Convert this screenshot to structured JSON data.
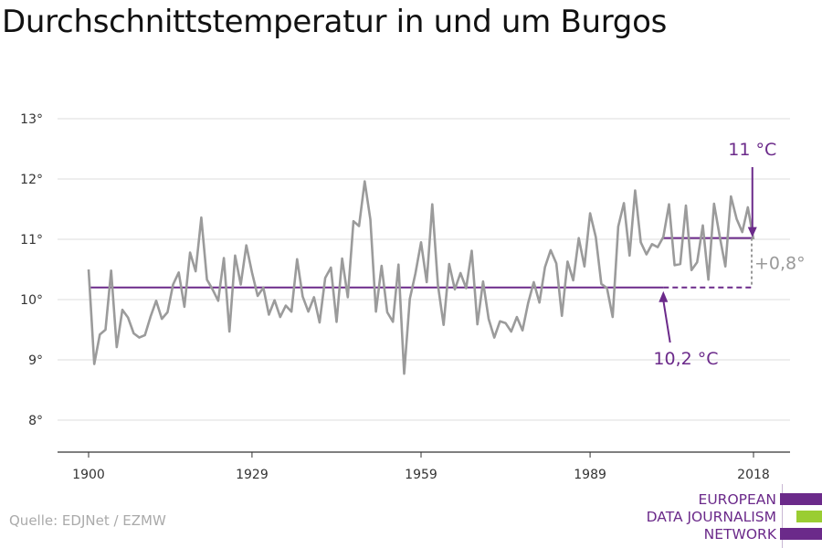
{
  "title": "Durchschnittstemperatur in und um Burgos",
  "source": "Quelle: EDJNet / EZMW",
  "logo": {
    "lines": [
      "EUROPEAN",
      "DATA JOURNALISM",
      "NETWORK"
    ],
    "colors": [
      "#6b2a8a",
      "#9acd32",
      "#6b2a8a"
    ]
  },
  "colors": {
    "series": "#9b9b9b",
    "accent": "#6b2a8a",
    "grid": "#dddddd",
    "axis": "#333333",
    "diff_label": "#999999"
  },
  "chart_data": {
    "type": "line",
    "title": "Durchschnittstemperatur in und um Burgos",
    "xlabel": "",
    "ylabel": "",
    "xlim": [
      1900,
      2018
    ],
    "ylim": [
      7.5,
      13.5
    ],
    "x_ticks": [
      1900,
      1929,
      1959,
      1989,
      2018
    ],
    "x_tick_labels": [
      "1900",
      "1929",
      "1959",
      "1989",
      "2018"
    ],
    "y_ticks": [
      8,
      9,
      10,
      11,
      12,
      13
    ],
    "y_tick_labels": [
      "8°",
      "9°",
      "10°",
      "11°",
      "12°",
      "13°"
    ],
    "grid": true,
    "series": [
      {
        "x": [
          1900,
          1901,
          1902,
          1903,
          1904,
          1905,
          1906,
          1907,
          1908,
          1909,
          1910,
          1911,
          1912,
          1913,
          1914,
          1915,
          1916,
          1917,
          1918,
          1919,
          1920,
          1921,
          1922,
          1923,
          1924,
          1925,
          1926,
          1927,
          1928,
          1929,
          1930,
          1931,
          1932,
          1933,
          1934,
          1935,
          1936,
          1937,
          1938,
          1939,
          1940,
          1941,
          1942,
          1943,
          1944,
          1945,
          1946,
          1947,
          1948,
          1949,
          1950,
          1951,
          1952,
          1953,
          1954,
          1955,
          1956,
          1957,
          1958,
          1959,
          1960,
          1961,
          1962,
          1963,
          1964,
          1965,
          1966,
          1967,
          1968,
          1969,
          1970,
          1971,
          1972,
          1973,
          1974,
          1975,
          1976,
          1977,
          1978,
          1979,
          1980,
          1981,
          1982,
          1983,
          1984,
          1985,
          1986,
          1987,
          1988,
          1989,
          1990,
          1991,
          1992,
          1993,
          1994,
          1995,
          1996,
          1997,
          1998,
          1999,
          2000,
          2001,
          2002,
          2003,
          2004,
          2005,
          2006,
          2007,
          2008,
          2009,
          2010,
          2011,
          2012,
          2013,
          2014,
          2015,
          2016,
          2017,
          2018
        ],
        "values": [
          10.5,
          8.93,
          9.42,
          9.5,
          10.48,
          9.21,
          9.83,
          9.7,
          9.44,
          9.37,
          9.41,
          9.72,
          9.98,
          9.68,
          9.79,
          10.25,
          10.45,
          9.88,
          10.78,
          10.47,
          11.36,
          10.33,
          10.17,
          9.98,
          10.69,
          9.47,
          10.73,
          10.25,
          10.9,
          10.45,
          10.06,
          10.2,
          9.75,
          9.99,
          9.71,
          9.9,
          9.8,
          10.67,
          10.05,
          9.8,
          10.04,
          9.62,
          10.36,
          10.53,
          9.63,
          10.68,
          10.04,
          11.3,
          11.22,
          11.96,
          11.33,
          9.8,
          10.56,
          9.79,
          9.63,
          10.58,
          8.77,
          10.01,
          10.43,
          10.95,
          10.29,
          11.58,
          10.24,
          9.58,
          10.59,
          10.17,
          10.44,
          10.19,
          10.81,
          9.59,
          10.3,
          9.68,
          9.37,
          9.64,
          9.61,
          9.47,
          9.71,
          9.49,
          9.94,
          10.29,
          9.95,
          10.54,
          10.82,
          10.6,
          9.73,
          10.63,
          10.32,
          11.02,
          10.55,
          11.43,
          11.04,
          10.26,
          10.19,
          9.71,
          11.21,
          11.6,
          10.73,
          11.81,
          10.95,
          10.75,
          10.92,
          10.87,
          11.04,
          11.58,
          10.57,
          10.59,
          11.56,
          10.49,
          10.62,
          11.23,
          10.33,
          11.59,
          11.05,
          10.55,
          11.71,
          11.34,
          11.12,
          11.53,
          11.0
        ]
      }
    ],
    "reference_lines": [
      {
        "from": 1900,
        "to": 2002,
        "dashed_to": 2018,
        "value": 10.2,
        "label": "10,2 °C"
      },
      {
        "from": 2002,
        "to": 2018,
        "value": 11.02,
        "label": "11 °C"
      }
    ],
    "difference_label": "+0,8°"
  }
}
